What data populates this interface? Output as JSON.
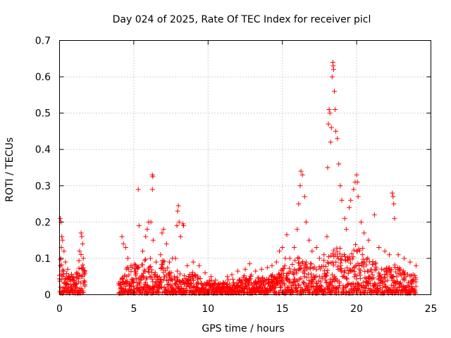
{
  "chart_data": {
    "type": "scatter",
    "title": "Day 024 of 2025, Rate Of TEC Index for receiver picl",
    "xlabel": "GPS time / hours",
    "ylabel": "ROTI / TECUs",
    "xlim": [
      0,
      25
    ],
    "ylim": [
      0,
      0.7
    ],
    "xticks": [
      0,
      5,
      10,
      15,
      20,
      25
    ],
    "yticks": [
      0,
      0.1,
      0.2,
      0.3,
      0.4,
      0.5,
      0.6,
      0.7
    ],
    "xtick_labels": [
      "0",
      "5",
      "10",
      "15",
      "20",
      "25"
    ],
    "ytick_labels": [
      "0",
      "0.1",
      "0.2",
      "0.3",
      "0.4",
      "0.5",
      "0.6",
      "0.7"
    ],
    "grid": true,
    "marker": "+",
    "color": "#ff0000",
    "series": [
      {
        "name": "ROTI",
        "points": [
          [
            0.05,
            0.21
          ],
          [
            0.1,
            0.2
          ],
          [
            0.15,
            0.16
          ],
          [
            0.2,
            0.15
          ],
          [
            0.12,
            0.13
          ],
          [
            0.3,
            0.12
          ],
          [
            0.08,
            0.1
          ],
          [
            0.4,
            0.09
          ],
          [
            0.55,
            0.07
          ],
          [
            0.7,
            0.05
          ],
          [
            0.9,
            0.04
          ],
          [
            1.1,
            0.03
          ],
          [
            1.35,
            0.12
          ],
          [
            1.45,
            0.17
          ],
          [
            1.5,
            0.16
          ],
          [
            1.55,
            0.14
          ],
          [
            1.6,
            0.1
          ],
          [
            1.65,
            0.06
          ],
          [
            4.2,
            0.16
          ],
          [
            4.3,
            0.14
          ],
          [
            4.45,
            0.13
          ],
          [
            4.6,
            0.1
          ],
          [
            4.8,
            0.08
          ],
          [
            5.3,
            0.29
          ],
          [
            5.35,
            0.19
          ],
          [
            5.6,
            0.12
          ],
          [
            5.8,
            0.16
          ],
          [
            5.9,
            0.18
          ],
          [
            6.0,
            0.2
          ],
          [
            6.15,
            0.2
          ],
          [
            6.25,
            0.33
          ],
          [
            6.28,
            0.325
          ],
          [
            6.25,
            0.29
          ],
          [
            6.3,
            0.15
          ],
          [
            6.5,
            0.09
          ],
          [
            6.8,
            0.11
          ],
          [
            6.9,
            0.17
          ],
          [
            7.0,
            0.18
          ],
          [
            7.2,
            0.14
          ],
          [
            7.4,
            0.09
          ],
          [
            7.6,
            0.1
          ],
          [
            7.8,
            0.1
          ],
          [
            7.9,
            0.19
          ],
          [
            7.95,
            0.23
          ],
          [
            8.0,
            0.245
          ],
          [
            8.05,
            0.2
          ],
          [
            8.15,
            0.16
          ],
          [
            8.3,
            0.195
          ],
          [
            8.35,
            0.19
          ],
          [
            8.6,
            0.08
          ],
          [
            9.0,
            0.09
          ],
          [
            9.4,
            0.08
          ],
          [
            9.8,
            0.06
          ],
          [
            10.2,
            0.05
          ],
          [
            10.5,
            0.04
          ],
          [
            11.3,
            0.05
          ],
          [
            11.6,
            0.055
          ],
          [
            12.0,
            0.065
          ],
          [
            12.5,
            0.07
          ],
          [
            12.8,
            0.085
          ],
          [
            13.2,
            0.065
          ],
          [
            13.6,
            0.07
          ],
          [
            14.0,
            0.075
          ],
          [
            14.3,
            0.08
          ],
          [
            14.6,
            0.09
          ],
          [
            14.8,
            0.12
          ],
          [
            15.0,
            0.13
          ],
          [
            15.2,
            0.1
          ],
          [
            15.3,
            0.165
          ],
          [
            15.5,
            0.1
          ],
          [
            15.8,
            0.13
          ],
          [
            16.0,
            0.18
          ],
          [
            16.1,
            0.25
          ],
          [
            16.2,
            0.3
          ],
          [
            16.25,
            0.34
          ],
          [
            16.35,
            0.33
          ],
          [
            16.5,
            0.27
          ],
          [
            16.6,
            0.2
          ],
          [
            16.8,
            0.15
          ],
          [
            17.0,
            0.12
          ],
          [
            17.3,
            0.13
          ],
          [
            17.5,
            0.1
          ],
          [
            17.8,
            0.11
          ],
          [
            18.0,
            0.16
          ],
          [
            18.05,
            0.35
          ],
          [
            18.1,
            0.47
          ],
          [
            18.15,
            0.51
          ],
          [
            18.2,
            0.5
          ],
          [
            18.25,
            0.42
          ],
          [
            18.3,
            0.46
          ],
          [
            18.35,
            0.6
          ],
          [
            18.4,
            0.64
          ],
          [
            18.42,
            0.63
          ],
          [
            18.45,
            0.62
          ],
          [
            18.5,
            0.56
          ],
          [
            18.55,
            0.51
          ],
          [
            18.6,
            0.45
          ],
          [
            18.7,
            0.43
          ],
          [
            18.8,
            0.36
          ],
          [
            18.9,
            0.3
          ],
          [
            19.0,
            0.26
          ],
          [
            19.2,
            0.21
          ],
          [
            19.3,
            0.18
          ],
          [
            19.5,
            0.24
          ],
          [
            19.6,
            0.26
          ],
          [
            19.8,
            0.29
          ],
          [
            19.9,
            0.31
          ],
          [
            20.0,
            0.33
          ],
          [
            20.05,
            0.31
          ],
          [
            20.1,
            0.27
          ],
          [
            20.3,
            0.2
          ],
          [
            20.5,
            0.17
          ],
          [
            20.8,
            0.15
          ],
          [
            21.2,
            0.22
          ],
          [
            21.5,
            0.13
          ],
          [
            21.9,
            0.12
          ],
          [
            22.2,
            0.11
          ],
          [
            22.4,
            0.28
          ],
          [
            22.45,
            0.27
          ],
          [
            22.5,
            0.25
          ],
          [
            22.55,
            0.21
          ],
          [
            22.8,
            0.11
          ],
          [
            23.2,
            0.1
          ],
          [
            23.6,
            0.09
          ],
          [
            24.0,
            0.08
          ]
        ]
      }
    ],
    "envelope": {
      "segments": [
        {
          "x": [
            0.0,
            0.25,
            0.5,
            0.75,
            1.0,
            1.25,
            1.5,
            1.75
          ],
          "peak": [
            0.1,
            0.08,
            0.06,
            0.06,
            0.05,
            0.08,
            0.12,
            0.05
          ]
        },
        {
          "x": [
            4.0,
            4.5,
            5.0,
            5.5,
            6.0,
            6.5,
            7.0,
            7.5,
            8.0,
            8.5,
            9.0,
            9.5,
            10.0,
            10.5,
            11.0
          ],
          "peak": [
            0.03,
            0.07,
            0.08,
            0.09,
            0.12,
            0.07,
            0.1,
            0.07,
            0.06,
            0.05,
            0.06,
            0.04,
            0.04,
            0.03,
            0.03
          ]
        },
        {
          "x": [
            11.0,
            11.5,
            12.0,
            12.5,
            13.0,
            13.5,
            14.0,
            14.5,
            15.0,
            15.5,
            16.0,
            16.5,
            17.0,
            17.5,
            18.0,
            18.5,
            19.0,
            19.5,
            20.0,
            20.5,
            21.0,
            21.5,
            22.0,
            22.5,
            23.0,
            23.5,
            24.0
          ],
          "peak": [
            0.03,
            0.04,
            0.04,
            0.05,
            0.05,
            0.04,
            0.05,
            0.06,
            0.08,
            0.07,
            0.1,
            0.09,
            0.08,
            0.08,
            0.1,
            0.14,
            0.12,
            0.13,
            0.14,
            0.12,
            0.09,
            0.08,
            0.07,
            0.08,
            0.07,
            0.06,
            0.05
          ]
        }
      ]
    }
  }
}
